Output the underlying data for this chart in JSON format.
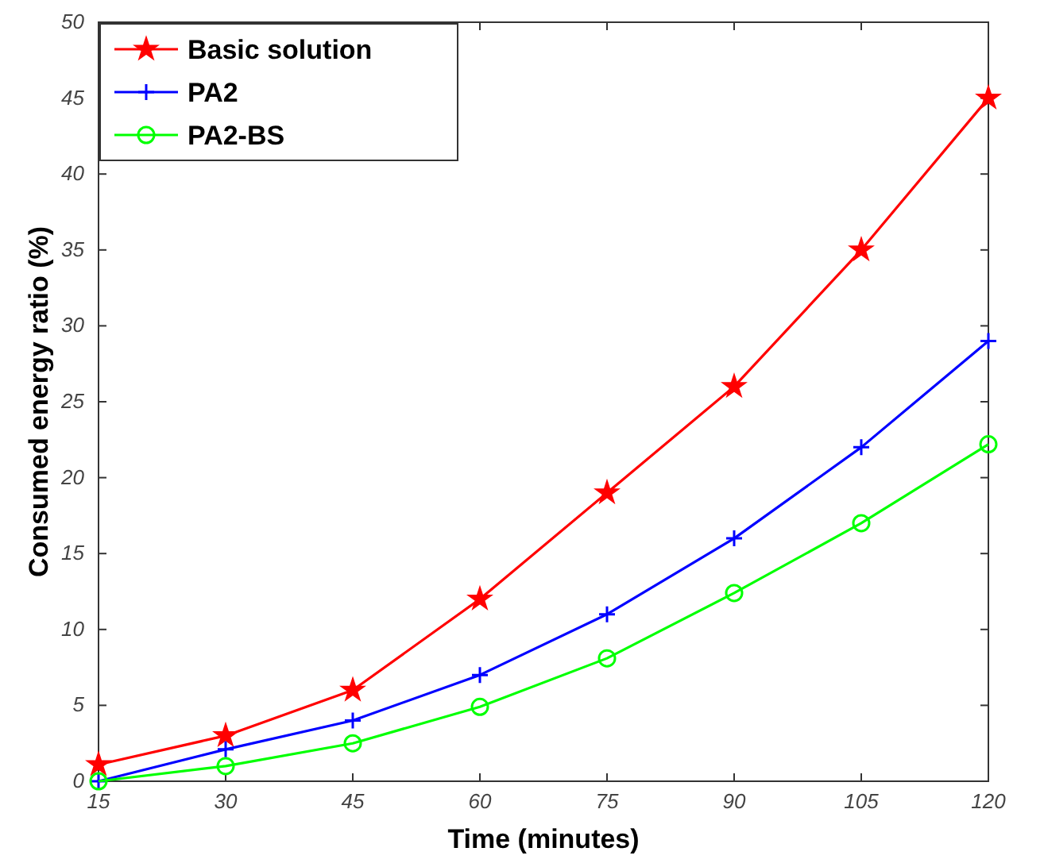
{
  "chart_data": {
    "type": "line",
    "xlabel": "Time (minutes)",
    "ylabel": "Consumed energy ratio (%)",
    "x": [
      15,
      30,
      45,
      60,
      75,
      90,
      105,
      120
    ],
    "series": [
      {
        "name": "Basic solution",
        "color": "#ff0000",
        "marker": "star",
        "values": [
          1.1,
          3,
          6,
          12,
          19,
          26,
          35,
          45
        ]
      },
      {
        "name": "PA2",
        "color": "#0000ff",
        "marker": "cross",
        "values": [
          0,
          2.1,
          4,
          7,
          11,
          16,
          22,
          29
        ]
      },
      {
        "name": "PA2-BS",
        "color": "#00ff00",
        "marker": "circle",
        "values": [
          0,
          1,
          2.5,
          4.9,
          8.1,
          12.4,
          17,
          22.2
        ]
      }
    ],
    "xlim": [
      15,
      120
    ],
    "xticks": [
      15,
      30,
      45,
      60,
      75,
      90,
      105,
      120
    ],
    "ylim": [
      0,
      50
    ],
    "yticks": [
      0,
      5,
      10,
      15,
      20,
      25,
      30,
      35,
      40,
      45,
      50
    ],
    "legend": "top left",
    "grid": false,
    "line_style": "solid"
  }
}
